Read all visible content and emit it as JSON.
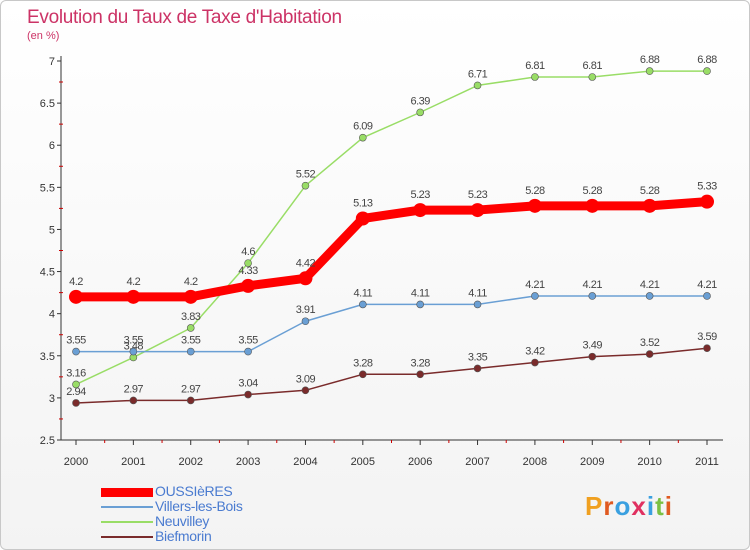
{
  "header": {
    "title": "Evolution du Taux de Taxe d'Habitation",
    "subtitle": "(en %)"
  },
  "chart_data": {
    "type": "line",
    "x": [
      "2000",
      "2001",
      "2002",
      "2003",
      "2004",
      "2005",
      "2006",
      "2007",
      "2008",
      "2009",
      "2010",
      "2011"
    ],
    "ylim": [
      2.5,
      7
    ],
    "yticks": [
      "2.5",
      "3",
      "3.5",
      "4",
      "4.5",
      "5",
      "5.5",
      "6",
      "6.5",
      "7"
    ],
    "grid": false,
    "legend_position": "bottom-left",
    "series": [
      {
        "name": "OUSSIèRES",
        "color": "#ff0000",
        "values": [
          4.2,
          4.2,
          4.2,
          4.33,
          4.42,
          5.13,
          5.23,
          5.23,
          5.28,
          5.28,
          5.28,
          5.33
        ],
        "labels": [
          "4.2",
          "4.2",
          "4.2",
          "4.33",
          "4.42",
          "5.13",
          "5.23",
          "5.23",
          "5.28",
          "5.28",
          "5.28",
          "5.33"
        ]
      },
      {
        "name": "Villers-les-Bois",
        "color": "#6a9fd4",
        "values": [
          3.55,
          3.55,
          3.55,
          3.55,
          3.91,
          4.11,
          4.11,
          4.11,
          4.21,
          4.21,
          4.21,
          4.21
        ],
        "labels": [
          "3.55",
          "3.55",
          "3.55",
          "3.55",
          "3.91",
          "4.11",
          "4.11",
          "4.11",
          "4.21",
          "4.21",
          "4.21",
          "4.21"
        ]
      },
      {
        "name": "Neuvilley",
        "color": "#99dd66",
        "values": [
          3.16,
          3.48,
          3.83,
          4.6,
          5.52,
          6.09,
          6.39,
          6.71,
          6.81,
          6.81,
          6.88,
          6.88
        ],
        "labels": [
          "3.16",
          "3.48",
          "3.83",
          "4.6",
          "5.52",
          "6.09",
          "6.39",
          "6.71",
          "6.81",
          "6.81",
          "6.88",
          "6.88"
        ]
      },
      {
        "name": "Biefmorin",
        "color": "#7a2b2b",
        "values": [
          2.94,
          2.97,
          2.97,
          3.04,
          3.09,
          3.28,
          3.28,
          3.35,
          3.42,
          3.49,
          3.52,
          3.59
        ],
        "labels": [
          "2.94",
          "2.97",
          "2.97",
          "3.04",
          "3.09",
          "3.28",
          "3.28",
          "3.35",
          "3.42",
          "3.49",
          "3.52",
          "3.59"
        ]
      }
    ]
  },
  "logo": {
    "text": "Proxiti",
    "colors": [
      "#f0a020",
      "#e05a20",
      "#3aa0e0",
      "#e03060",
      "#3aa0e0",
      "#7bc043",
      "#e05a20"
    ]
  }
}
